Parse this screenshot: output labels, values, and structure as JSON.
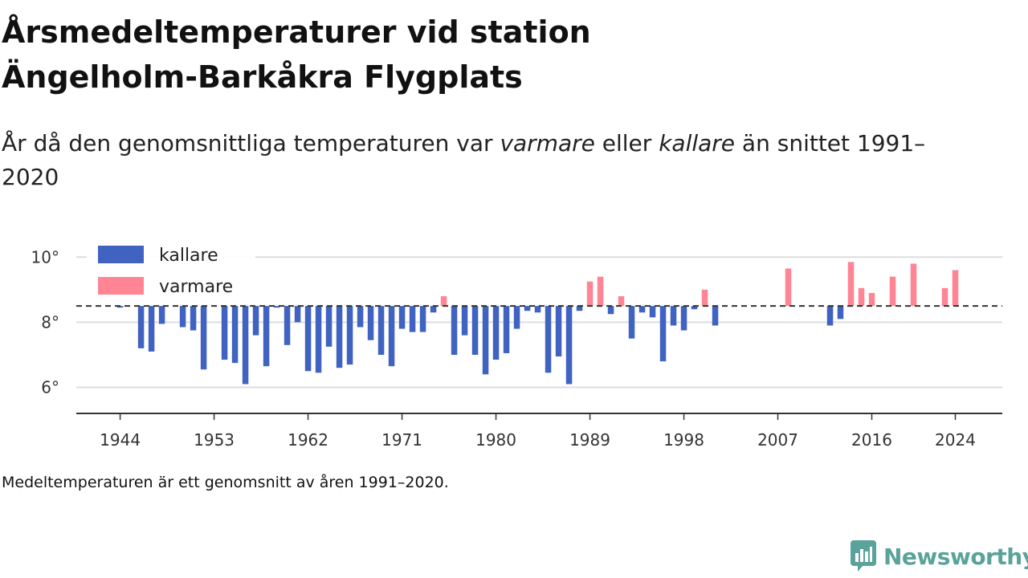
{
  "title_line1": "Årsmedeltemperaturer vid station",
  "title_line2": "Ängelholm-Barkåkra Flygplats",
  "subtitle": {
    "part1": "År då den genomsnittliga temperaturen var ",
    "em1": "varmare",
    "part2": " eller ",
    "em2": "kallare",
    "part3": " än snittet 1991–2020"
  },
  "footnote": "Medeltemperaturen är ett genomsnitt av åren 1991–2020.",
  "brand": {
    "name": "Newsworthy"
  },
  "colors": {
    "kallare": "#4063c1",
    "varmare": "#ff8595",
    "baseline": "#333333",
    "grid": "#dddddd",
    "brand": "#5aa39a"
  },
  "chart_data": {
    "type": "bar",
    "baseline": 8.5,
    "ylim": [
      5.2,
      10.5
    ],
    "xlim": [
      1939.8,
      2028.5
    ],
    "yticks": [
      6,
      8,
      10
    ],
    "ytick_labels": [
      "6°",
      "8°",
      "10°"
    ],
    "xticks": [
      1944,
      1953,
      1962,
      1971,
      1980,
      1989,
      1998,
      2007,
      2016,
      2024
    ],
    "grid": true,
    "legend": {
      "position": "top-left",
      "entries": [
        {
          "key": "kallare",
          "label": "kallare"
        },
        {
          "key": "varmare",
          "label": "varmare"
        }
      ]
    },
    "series": [
      {
        "name": "kallare",
        "x": [
          1944,
          1946,
          1947,
          1948,
          1950,
          1951,
          1952,
          1954,
          1955,
          1956,
          1957,
          1958,
          1959,
          1960,
          1961,
          1962,
          1963,
          1964,
          1965,
          1966,
          1967,
          1968,
          1969,
          1970,
          1971,
          1972,
          1973,
          1974,
          1976,
          1977,
          1978,
          1979,
          1980,
          1981,
          1982,
          1983,
          1984,
          1985,
          1986,
          1987,
          1988,
          1991,
          1993,
          1994,
          1995,
          1996,
          1997,
          1998,
          1999,
          2001,
          2012,
          2013
        ],
        "values": [
          8.45,
          7.2,
          7.1,
          7.95,
          7.85,
          7.75,
          6.55,
          6.85,
          6.75,
          6.1,
          7.6,
          6.65,
          8.45,
          7.3,
          8.0,
          6.5,
          6.45,
          7.25,
          6.6,
          6.7,
          7.85,
          7.45,
          7.0,
          6.65,
          7.8,
          7.7,
          7.7,
          8.3,
          7.0,
          7.6,
          7.0,
          6.4,
          6.85,
          7.05,
          7.8,
          8.35,
          8.3,
          6.45,
          6.95,
          6.1,
          8.35,
          8.25,
          7.5,
          8.3,
          8.15,
          6.8,
          7.9,
          7.75,
          8.4,
          7.9,
          7.9,
          8.1
        ]
      },
      {
        "name": "varmare",
        "x": [
          1975,
          1989,
          1990,
          1992,
          2000,
          2008,
          2014,
          2015,
          2016,
          2018,
          2020,
          2023,
          2024
        ],
        "values": [
          8.8,
          9.25,
          9.4,
          8.8,
          9.0,
          9.65,
          9.85,
          9.05,
          8.9,
          9.4,
          9.8,
          9.05,
          9.6
        ]
      }
    ]
  }
}
